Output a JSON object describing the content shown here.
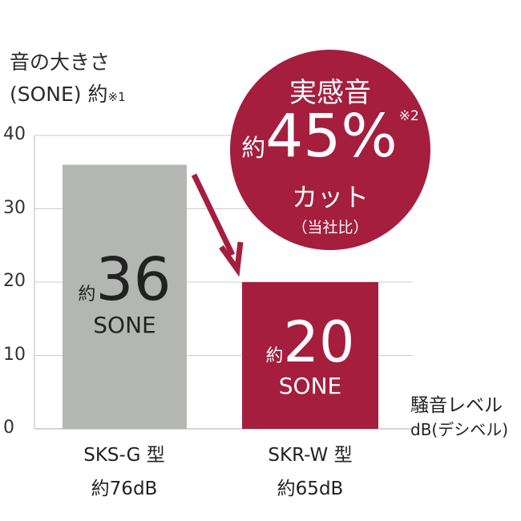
{
  "chart_data": {
    "type": "bar",
    "title": "",
    "ylabel_line1": "音の大きさ",
    "ylabel_line2": "(SONE) 約",
    "ylabel_note": "※1",
    "xlabel_line1": "騒音レベル",
    "xlabel_line2": "dB(デシベル)",
    "ylim": [
      0,
      40
    ],
    "yticks": [
      "0",
      "10",
      "20",
      "30",
      "40"
    ],
    "ytick_values": [
      0,
      10,
      20,
      30,
      40
    ],
    "grid": true,
    "categories": [
      "SKS-G 型",
      "SKR-W 型"
    ],
    "category_sublabels": [
      "約76dB",
      "約65dB"
    ],
    "values": [
      36,
      20
    ],
    "bar_colors": [
      "#b4b6b4",
      "#a51e3d"
    ],
    "data_labels": [
      {
        "prefix": "約",
        "value": "36",
        "unit": "SONE"
      },
      {
        "prefix": "約",
        "value": "20",
        "unit": "SONE"
      }
    ],
    "annotation": {
      "line1": "実感音",
      "prefix": "約",
      "value": "45%",
      "note": "※2",
      "line3": "カット",
      "line4": "（当社比）",
      "color": "#a51e3d"
    },
    "arrow_color": "#a51e3d"
  }
}
